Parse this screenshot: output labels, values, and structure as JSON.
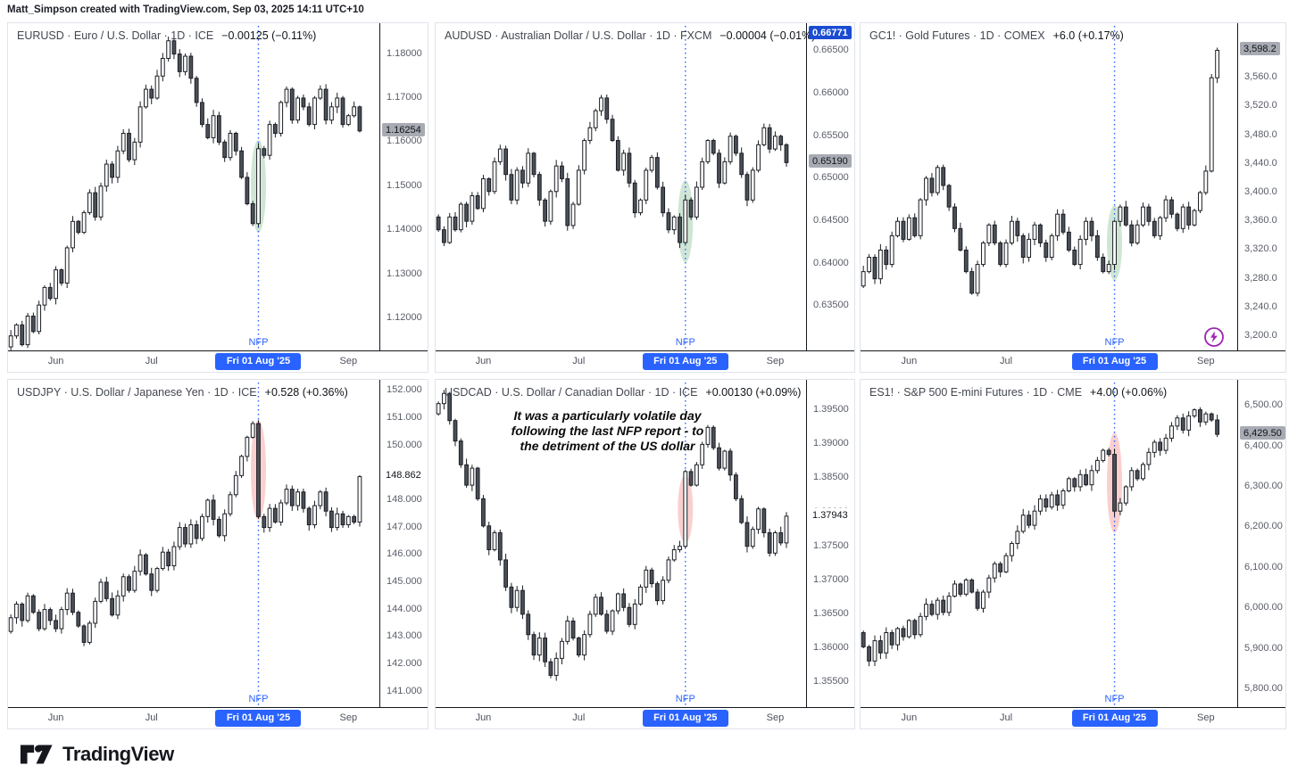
{
  "header": {
    "credit": "Matt_Simpson created with TradingView.com, Sep 03, 2025 14:11 UTC+10"
  },
  "footer": {
    "brand": "TradingView"
  },
  "nfp": {
    "label": "NFP",
    "date_badge": "Fri 01 Aug '25"
  },
  "colors": {
    "accent_blue": "#2962ff",
    "label_blue_bg": "#1a4bd2",
    "label_gray_bg": "#a8abb3",
    "up_candle": "#ffffff",
    "down_candle": "#4b5058",
    "candle_border": "#1a1d23",
    "highlight_green": "rgba(96,173,114,0.30)",
    "highlight_red": "rgba(239,100,97,0.30)",
    "frame": "#14171c",
    "panel_border": "#e0e3eb",
    "lightning_purple": "#9c27b0"
  },
  "chart_data": [
    {
      "id": "EURUSD",
      "type": "candlestick",
      "title_symbol": "EURUSD · Euro / U.S. Dollar · 1D · ICE",
      "title_change": "−0.00125 (−0.11%)",
      "y_range": [
        1.1125,
        1.187
      ],
      "y_ticks": [
        {
          "label": "1.18000",
          "value": 1.18
        },
        {
          "label": "1.17000",
          "value": 1.17
        },
        {
          "label": "1.16000",
          "value": 1.16
        },
        {
          "label": "1.15000",
          "value": 1.15
        },
        {
          "label": "1.14000",
          "value": 1.14
        },
        {
          "label": "1.13000",
          "value": 1.13
        },
        {
          "label": "1.12000",
          "value": 1.12
        }
      ],
      "x_labels": [
        {
          "label": "Jun",
          "index": 8
        },
        {
          "label": "Jul",
          "index": 25
        },
        {
          "label": "Sep",
          "index": 60
        }
      ],
      "slots": 66,
      "nfp_index": 44,
      "highlight": "green",
      "highlight_ry": 52,
      "last_label": {
        "text": "1.16254",
        "value": 1.16254,
        "style": "gray"
      },
      "closes": [
        1.116,
        1.1185,
        1.114,
        1.1205,
        1.117,
        1.123,
        1.127,
        1.1245,
        1.131,
        1.128,
        1.136,
        1.142,
        1.1395,
        1.144,
        1.1485,
        1.143,
        1.15,
        1.155,
        1.152,
        1.158,
        1.162,
        1.156,
        1.16,
        1.168,
        1.172,
        1.17,
        1.175,
        1.179,
        1.183,
        1.18,
        1.176,
        1.1795,
        1.1745,
        1.169,
        1.164,
        1.161,
        1.166,
        1.16,
        1.1565,
        1.162,
        1.158,
        1.152,
        1.146,
        1.1415,
        1.1585,
        1.157,
        1.164,
        1.162,
        1.169,
        1.172,
        1.165,
        1.17,
        1.168,
        1.164,
        1.17,
        1.172,
        1.165,
        1.168,
        1.17,
        1.164,
        1.166,
        1.168,
        1.16254
      ]
    },
    {
      "id": "AUDUSD",
      "type": "candlestick",
      "title_symbol": "AUDUSD · Australian Dollar / U.S. Dollar · 1D · FXCM",
      "title_change": "−0.00004 (−0.01%)",
      "y_range": [
        0.6297,
        0.6683
      ],
      "y_ticks": [
        {
          "label": "0.66500",
          "value": 0.665
        },
        {
          "label": "0.66000",
          "value": 0.66
        },
        {
          "label": "0.65500",
          "value": 0.655
        },
        {
          "label": "0.65000",
          "value": 0.65
        },
        {
          "label": "0.64500",
          "value": 0.645
        },
        {
          "label": "0.64000",
          "value": 0.64
        },
        {
          "label": "0.63500",
          "value": 0.635
        }
      ],
      "x_labels": [
        {
          "label": "Jun",
          "index": 8
        },
        {
          "label": "Jul",
          "index": 25
        },
        {
          "label": "Sep",
          "index": 60
        }
      ],
      "slots": 66,
      "nfp_index": 44,
      "highlight": "green",
      "highlight_ry": 46,
      "last_label": {
        "text": "0.65190",
        "value": 0.6519,
        "style": "gray"
      },
      "top_label": {
        "text": "0.66771",
        "style": "blue"
      },
      "closes": [
        0.644,
        0.6425,
        0.6455,
        0.644,
        0.647,
        0.645,
        0.648,
        0.6465,
        0.65,
        0.6485,
        0.652,
        0.6535,
        0.6505,
        0.6475,
        0.651,
        0.6495,
        0.653,
        0.6505,
        0.6475,
        0.645,
        0.6485,
        0.6515,
        0.65,
        0.6445,
        0.647,
        0.651,
        0.6545,
        0.656,
        0.658,
        0.6595,
        0.657,
        0.6545,
        0.651,
        0.653,
        0.6495,
        0.646,
        0.6475,
        0.651,
        0.6525,
        0.649,
        0.646,
        0.644,
        0.6455,
        0.6425,
        0.6475,
        0.6455,
        0.649,
        0.652,
        0.6545,
        0.653,
        0.6495,
        0.652,
        0.655,
        0.653,
        0.6505,
        0.6475,
        0.651,
        0.654,
        0.656,
        0.6535,
        0.655,
        0.654,
        0.6519
      ]
    },
    {
      "id": "GC1!",
      "type": "candlestick",
      "title_symbol": "GC1! · Gold Futures · 1D · COMEX",
      "title_change": "+6.0 (+0.17%)",
      "y_range": [
        3179,
        3636
      ],
      "y_ticks": [
        {
          "label": "3,560.0",
          "value": 3560
        },
        {
          "label": "3,520.0",
          "value": 3520
        },
        {
          "label": "3,480.0",
          "value": 3480
        },
        {
          "label": "3,440.0",
          "value": 3440
        },
        {
          "label": "3,400.0",
          "value": 3400
        },
        {
          "label": "3,360.0",
          "value": 3360
        },
        {
          "label": "3,320.0",
          "value": 3320
        },
        {
          "label": "3,280.0",
          "value": 3280
        },
        {
          "label": "3,240.0",
          "value": 3240
        },
        {
          "label": "3,200.0",
          "value": 3200
        }
      ],
      "x_labels": [
        {
          "label": "Jun",
          "index": 8
        },
        {
          "label": "Jul",
          "index": 25
        },
        {
          "label": "Sep",
          "index": 60
        }
      ],
      "slots": 66,
      "nfp_index": 44,
      "highlight": "green",
      "highlight_ry": 42,
      "last_label": {
        "text": "3,598.2",
        "value": 3598.2,
        "style": "gray"
      },
      "lightning_icon": true,
      "closes": [
        3290,
        3310,
        3280,
        3320,
        3300,
        3340,
        3360,
        3335,
        3365,
        3340,
        3390,
        3420,
        3400,
        3435,
        3410,
        3380,
        3350,
        3320,
        3290,
        3260,
        3300,
        3330,
        3355,
        3330,
        3300,
        3330,
        3360,
        3340,
        3310,
        3335,
        3355,
        3330,
        3310,
        3340,
        3370,
        3345,
        3320,
        3300,
        3335,
        3360,
        3340,
        3310,
        3290,
        3300,
        3360,
        3380,
        3355,
        3330,
        3355,
        3380,
        3360,
        3340,
        3365,
        3390,
        3370,
        3350,
        3380,
        3355,
        3375,
        3400,
        3430,
        3560,
        3598.2
      ]
    },
    {
      "id": "USDJPY",
      "type": "candlestick",
      "title_symbol": "USDJPY · U.S. Dollar / Japanese Yen · 1D · ICE",
      "title_change": "+0.528 (+0.36%)",
      "y_range": [
        140.4,
        152.4
      ],
      "y_ticks": [
        {
          "label": "152.000",
          "value": 152
        },
        {
          "label": "151.000",
          "value": 151
        },
        {
          "label": "150.000",
          "value": 150
        },
        {
          "label": "148.000",
          "value": 148
        },
        {
          "label": "147.000",
          "value": 147
        },
        {
          "label": "146.000",
          "value": 146
        },
        {
          "label": "145.000",
          "value": 145
        },
        {
          "label": "144.000",
          "value": 144
        },
        {
          "label": "143.000",
          "value": 143
        },
        {
          "label": "142.000",
          "value": 142
        },
        {
          "label": "141.000",
          "value": 141
        }
      ],
      "x_labels": [
        {
          "label": "Jun",
          "index": 8
        },
        {
          "label": "Jul",
          "index": 25
        },
        {
          "label": "Sep",
          "index": 60
        }
      ],
      "slots": 66,
      "nfp_index": 44,
      "highlight": "red",
      "highlight_ry": 56,
      "last_label": {
        "text": "148.862",
        "value": 148.862,
        "style": "white"
      },
      "closes": [
        143.7,
        144.2,
        143.6,
        144.5,
        143.9,
        143.3,
        144.0,
        143.6,
        143.3,
        144.0,
        144.6,
        143.9,
        143.4,
        142.8,
        143.5,
        144.3,
        145.0,
        144.4,
        143.8,
        144.5,
        145.2,
        144.7,
        145.4,
        146.0,
        145.3,
        144.7,
        145.5,
        146.1,
        145.6,
        146.3,
        147.0,
        146.4,
        147.1,
        146.6,
        147.4,
        148.0,
        147.3,
        146.7,
        147.5,
        148.2,
        148.9,
        149.6,
        150.3,
        150.8,
        147.4,
        147.0,
        147.7,
        147.2,
        147.9,
        148.4,
        147.8,
        148.3,
        147.7,
        147.1,
        147.8,
        148.3,
        147.6,
        147.0,
        147.5,
        147.1,
        147.4,
        147.2,
        148.86
      ]
    },
    {
      "id": "USDCAD",
      "type": "candlestick",
      "title_symbol": "USDCAD · U.S. Dollar / Canadian Dollar · 1D · ICE",
      "title_change": "+0.00130 (+0.09%)",
      "y_range": [
        1.3512,
        1.3995
      ],
      "y_ticks": [
        {
          "label": "1.39500",
          "value": 1.395
        },
        {
          "label": "1.39000",
          "value": 1.39
        },
        {
          "label": "1.38500",
          "value": 1.385
        },
        {
          "label": "1.38000",
          "value": 1.38
        },
        {
          "label": "1.37500",
          "value": 1.375
        },
        {
          "label": "1.37000",
          "value": 1.37
        },
        {
          "label": "1.36500",
          "value": 1.365
        },
        {
          "label": "1.36000",
          "value": 1.36
        },
        {
          "label": "1.35500",
          "value": 1.355
        }
      ],
      "x_labels": [
        {
          "label": "Jun",
          "index": 8
        },
        {
          "label": "Jul",
          "index": 25
        },
        {
          "label": "Sep",
          "index": 60
        }
      ],
      "slots": 66,
      "nfp_index": 44,
      "highlight": "red",
      "highlight_ry": 38,
      "last_label": {
        "text": "1.37943",
        "value": 1.37943,
        "style": "white"
      },
      "annotation": {
        "lines": [
          "It was a particularly volatile day",
          "following the last NFP report - to",
          "the detriment of the US dollar"
        ]
      },
      "closes": [
        1.396,
        1.3975,
        1.3935,
        1.3905,
        1.387,
        1.384,
        1.3865,
        1.382,
        1.378,
        1.3745,
        1.377,
        1.373,
        1.369,
        1.366,
        1.3685,
        1.365,
        1.362,
        1.359,
        1.3615,
        1.358,
        1.356,
        1.3585,
        1.361,
        1.364,
        1.3615,
        1.359,
        1.362,
        1.365,
        1.3675,
        1.365,
        1.3625,
        1.3655,
        1.368,
        1.366,
        1.3635,
        1.3665,
        1.369,
        1.3715,
        1.3695,
        1.367,
        1.37,
        1.373,
        1.3745,
        1.375,
        1.386,
        1.384,
        1.387,
        1.39,
        1.3925,
        1.3895,
        1.3865,
        1.389,
        1.3855,
        1.382,
        1.3785,
        1.375,
        1.3775,
        1.3805,
        1.377,
        1.374,
        1.377,
        1.3755,
        1.37943
      ]
    },
    {
      "id": "ES1!",
      "type": "candlestick",
      "title_symbol": "ES1! · S&P 500 E-mini Futures · 1D · CME",
      "title_change": "+4.00 (+0.06%)",
      "y_range": [
        5754,
        6564
      ],
      "y_ticks": [
        {
          "label": "6,500.00",
          "value": 6500
        },
        {
          "label": "6,400.00",
          "value": 6400
        },
        {
          "label": "6,300.00",
          "value": 6300
        },
        {
          "label": "6,200.00",
          "value": 6200
        },
        {
          "label": "6,100.00",
          "value": 6100
        },
        {
          "label": "6,000.00",
          "value": 6000
        },
        {
          "label": "5,900.00",
          "value": 5900
        },
        {
          "label": "5,800.00",
          "value": 5800
        }
      ],
      "x_labels": [
        {
          "label": "Jun",
          "index": 8
        },
        {
          "label": "Jul",
          "index": 25
        },
        {
          "label": "Sep",
          "index": 60
        }
      ],
      "slots": 66,
      "nfp_index": 44,
      "highlight": "red",
      "highlight_ry": 56,
      "last_label": {
        "text": "6,429.50",
        "value": 6429.5,
        "style": "gray"
      },
      "closes": [
        5905,
        5870,
        5920,
        5890,
        5940,
        5910,
        5950,
        5930,
        5970,
        5935,
        5980,
        6010,
        5985,
        6020,
        5990,
        6030,
        6060,
        6035,
        6070,
        6040,
        6000,
        6040,
        6075,
        6110,
        6090,
        6130,
        6160,
        6190,
        6230,
        6205,
        6240,
        6270,
        6250,
        6280,
        6255,
        6290,
        6320,
        6300,
        6330,
        6305,
        6340,
        6365,
        6390,
        6380,
        6240,
        6260,
        6300,
        6340,
        6320,
        6355,
        6385,
        6410,
        6390,
        6420,
        6450,
        6470,
        6440,
        6475,
        6490,
        6460,
        6480,
        6465,
        6429.5
      ]
    }
  ]
}
